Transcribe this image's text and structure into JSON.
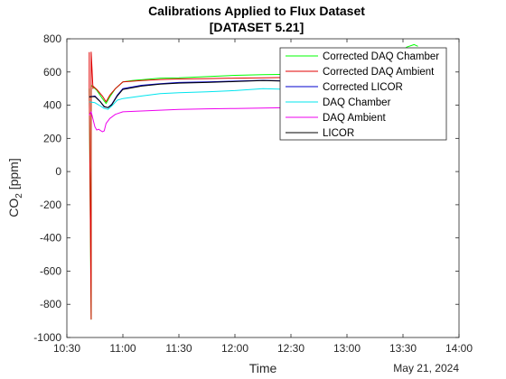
{
  "chart_data": {
    "type": "line",
    "title": "Calibrations Applied to Flux Dataset",
    "subtitle": "[DATASET 5.21]",
    "xlabel": "Time",
    "ylabel_main": "CO",
    "ylabel_sub": "2",
    "ylabel_unit": " [ppm]",
    "date_label": "May 21, 2024",
    "xlim": [
      "10:30",
      "14:00"
    ],
    "ylim": [
      -1000,
      800
    ],
    "x_ticks": [
      "10:30",
      "11:00",
      "11:30",
      "12:00",
      "12:30",
      "13:00",
      "13:30",
      "14:00"
    ],
    "y_ticks": [
      800,
      600,
      400,
      200,
      0,
      -200,
      -400,
      -600,
      -800,
      -1000
    ],
    "grid": false,
    "legend_position": "top-right",
    "series": [
      {
        "name": "Corrected DAQ Chamber",
        "color": "#00ff00",
        "x": [
          "10:42",
          "10:43",
          "10:43",
          "10:44",
          "10:46",
          "10:49",
          "10:51",
          "10:53",
          "10:56",
          "11:00",
          "11:05",
          "11:10",
          "11:20",
          "11:30",
          "11:45",
          "12:00",
          "12:15",
          "12:30",
          "12:45",
          "13:00",
          "13:15",
          "13:25",
          "13:32",
          "13:36",
          "13:38"
        ],
        "y": [
          500,
          -890,
          520,
          510,
          490,
          440,
          410,
          450,
          500,
          540,
          548,
          553,
          563,
          565,
          572,
          580,
          584,
          586,
          590,
          600,
          610,
          680,
          750,
          765,
          755
        ]
      },
      {
        "name": "Corrected DAQ Ambient",
        "color": "#e00000",
        "x": [
          "10:42",
          "10:42",
          "10:43",
          "10:43",
          "10:44",
          "10:44",
          "10:46",
          "10:49",
          "10:51",
          "10:53",
          "10:56",
          "11:00",
          "11:10",
          "11:20",
          "11:30",
          "11:45",
          "12:00",
          "12:15",
          "12:30",
          "12:45",
          "13:00",
          "13:15",
          "13:30",
          "13:38"
        ],
        "y": [
          720,
          510,
          -890,
          720,
          500,
          515,
          495,
          455,
          420,
          460,
          500,
          540,
          548,
          555,
          558,
          560,
          563,
          565,
          568,
          570,
          572,
          575,
          578,
          580
        ]
      },
      {
        "name": "Corrected LICOR",
        "color": "#0000cd",
        "x": [
          "10:42",
          "10:45",
          "10:48",
          "10:50",
          "10:52",
          "10:54",
          "10:57",
          "11:00",
          "11:10",
          "11:20",
          "11:30",
          "11:45",
          "12:00",
          "12:15",
          "12:30",
          "12:45",
          "13:00",
          "13:15",
          "13:30",
          "13:38"
        ],
        "y": [
          450,
          455,
          420,
          390,
          385,
          405,
          460,
          500,
          520,
          530,
          537,
          540,
          545,
          550,
          546,
          548,
          552,
          555,
          557,
          558
        ]
      },
      {
        "name": "DAQ Chamber",
        "color": "#00e5ee",
        "x": [
          "10:42",
          "10:45",
          "10:48",
          "10:50",
          "10:52",
          "10:54",
          "10:57",
          "11:00",
          "11:10",
          "11:20",
          "11:30",
          "11:45",
          "12:00",
          "12:15",
          "12:30",
          "12:45",
          "13:00",
          "13:15",
          "13:30",
          "13:38"
        ],
        "y": [
          420,
          415,
          395,
          380,
          375,
          395,
          430,
          440,
          455,
          470,
          475,
          480,
          488,
          500,
          495,
          500,
          505,
          510,
          515,
          520
        ]
      },
      {
        "name": "DAQ Ambient",
        "color": "#ee00ee",
        "x": [
          "10:42",
          "10:43",
          "10:45",
          "10:46",
          "10:47",
          "10:49",
          "10:50",
          "10:51",
          "10:53",
          "10:56",
          "11:00",
          "11:10",
          "11:20",
          "11:30",
          "11:45",
          "12:00",
          "12:15",
          "12:30",
          "12:45",
          "13:00",
          "13:15",
          "13:30",
          "13:38"
        ],
        "y": [
          340,
          360,
          270,
          250,
          255,
          240,
          245,
          290,
          320,
          345,
          360,
          365,
          370,
          374,
          378,
          380,
          383,
          385,
          387,
          390,
          392,
          395,
          396
        ]
      },
      {
        "name": "LICOR",
        "color": "#000000",
        "x": [
          "10:42",
          "10:45",
          "10:48",
          "10:50",
          "10:52",
          "10:54",
          "10:57",
          "11:00",
          "11:10",
          "11:20",
          "11:30",
          "11:45",
          "12:00",
          "12:15",
          "12:30",
          "12:45",
          "13:00",
          "13:15",
          "13:30",
          "13:38"
        ],
        "y": [
          450,
          452,
          420,
          392,
          385,
          402,
          455,
          495,
          515,
          527,
          533,
          537,
          542,
          548,
          544,
          546,
          550,
          553,
          555,
          556
        ]
      }
    ]
  }
}
